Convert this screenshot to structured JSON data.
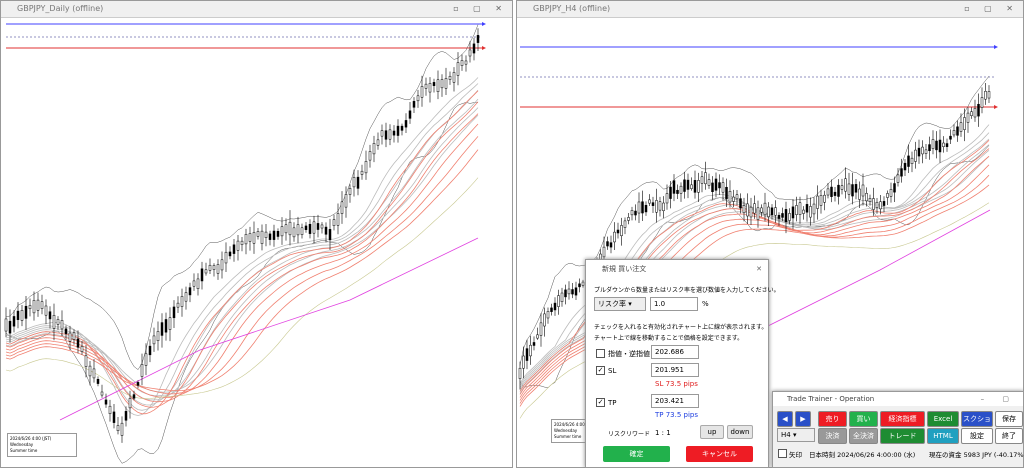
{
  "windows": {
    "left": {
      "title": "GBPJPY_Daily (offline)",
      "info": [
        "2024/6/26 4:00 (JST)",
        "Wednesday",
        "Summer time"
      ]
    },
    "right": {
      "title": "GBPJPY_H4 (offline)",
      "info": [
        "2024/6/26 4:00 (JST)",
        "Wednesday",
        "Summer time"
      ]
    }
  },
  "order_dialog": {
    "title": "新規 買い注文",
    "instruction": "プルダウンから数量またはリスク率を選び数値を入力してください。",
    "mode": "リスク率",
    "amount": "1.0",
    "unit": "%",
    "note1": "チェックを入れると有効化されチャート上に線が表示されます。",
    "note2": "チャート上で線を移動することで価格を設定できます。",
    "limit": {
      "label": "指値・逆指値",
      "value": "202.686"
    },
    "sl": {
      "label": "SL",
      "value": "201.951",
      "pips": "SL 73.5 pips"
    },
    "tp": {
      "label": "TP",
      "value": "203.421",
      "pips": "TP 73.5 pips"
    },
    "risk_reward": {
      "label": "リスクリワード",
      "value": "1 : 1"
    },
    "up": "up",
    "down": "down",
    "confirm": "確定",
    "cancel": "キャンセル"
  },
  "trainer": {
    "title": "Trade Trainer - Operation",
    "row1": [
      "◀",
      "▶",
      "売り",
      "買い",
      "経済指標",
      "Excel",
      "スクショ",
      "保存"
    ],
    "timeframe": "H4",
    "row2": [
      "決済",
      "全決済",
      "トレード",
      "HTML",
      "設定",
      "終了"
    ],
    "arrow": "矢印",
    "time": "日本時刻 2024/06/26 4:00:00 (水)",
    "balance": "現在の資金 5983 JPY (-40.17%)"
  }
}
